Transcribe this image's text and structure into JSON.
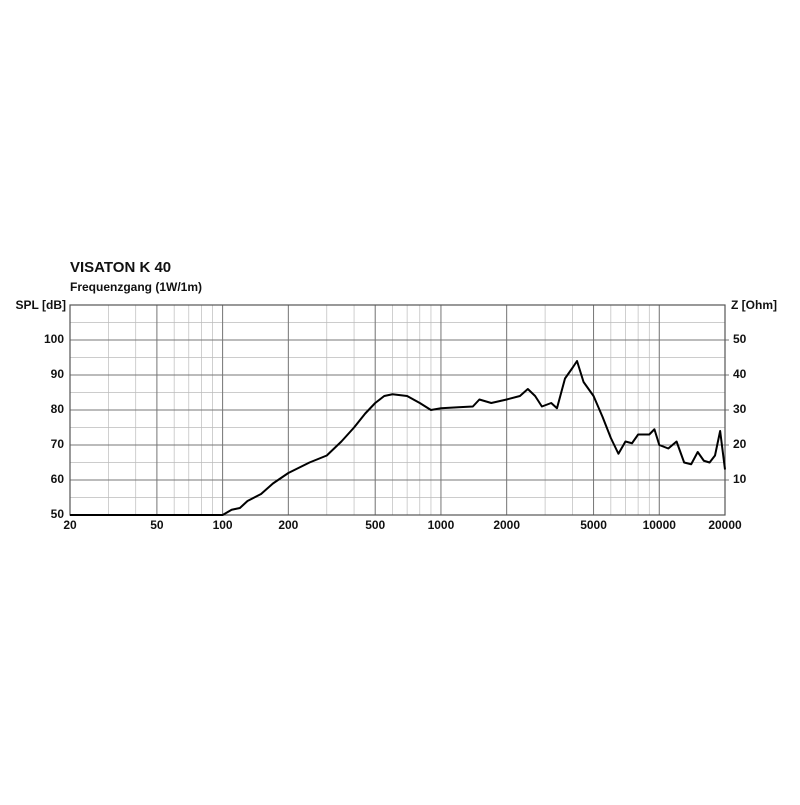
{
  "chart_data": {
    "type": "line",
    "title": "VISATON K 40",
    "subtitle": "Frequenzgang (1W/1m)",
    "y_label": "SPL [dB]",
    "y2_label": "Z [Ohm]",
    "log_x": true,
    "grid": true,
    "x": [
      20,
      100,
      110,
      120,
      130,
      150,
      170,
      200,
      250,
      300,
      350,
      400,
      450,
      500,
      550,
      600,
      700,
      800,
      900,
      1000,
      1200,
      1400,
      1500,
      1700,
      2000,
      2300,
      2500,
      2700,
      2900,
      3200,
      3400,
      3700,
      4000,
      4200,
      4500,
      5000,
      5500,
      6000,
      6500,
      7000,
      7500,
      8000,
      9000,
      9500,
      10000,
      11000,
      12000,
      13000,
      14000,
      15000,
      16000,
      17000,
      18000,
      19000,
      20000
    ],
    "series": [
      {
        "color": "#000000",
        "values": [
          50,
          50,
          51.5,
          52,
          54,
          56,
          59,
          62,
          65,
          67,
          71,
          75,
          79,
          82,
          84,
          84.5,
          84,
          82,
          80,
          80.5,
          80.8,
          81,
          83,
          82,
          83,
          84,
          86,
          84,
          81,
          82,
          80.5,
          89,
          92,
          94,
          88,
          84,
          78,
          72,
          67.5,
          71,
          70.5,
          73,
          73,
          74.5,
          70,
          69,
          71,
          65,
          64.5,
          68,
          65.5,
          65,
          67,
          74,
          63
        ]
      }
    ],
    "xlim": [
      20,
      20000
    ],
    "xticks": [
      20,
      50,
      100,
      200,
      500,
      1000,
      2000,
      5000,
      10000,
      20000
    ],
    "ylim": [
      50,
      110
    ],
    "yticks": [
      50,
      60,
      70,
      80,
      90,
      100
    ],
    "y2lim": [
      0,
      60
    ],
    "y2ticks": [
      10,
      20,
      30,
      40,
      50
    ]
  }
}
